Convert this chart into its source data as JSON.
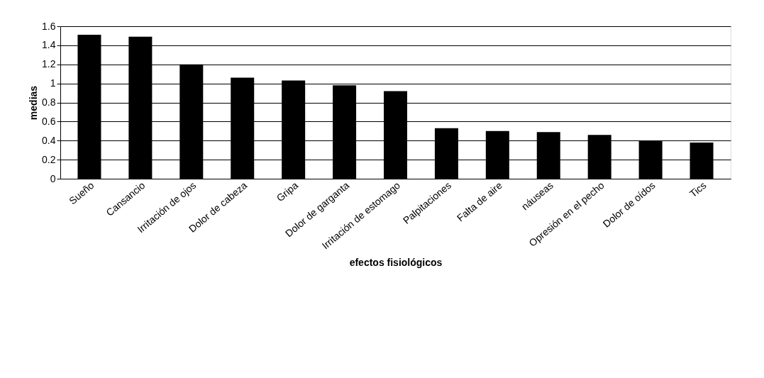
{
  "chart_data": {
    "type": "bar",
    "xlabel": "efectos fisiológicos",
    "ylabel": "medias",
    "categories": [
      "Sueño",
      "Cansancio",
      "Irritación de ojos",
      "Dolor de cabeza",
      "Gripa",
      "Dolor de garganta",
      "Irritación de estomago",
      "Palpitaciones",
      "Falta de aire",
      "náuseas",
      "Opresión en el pecho",
      "Dolor de oídos",
      "Tics"
    ],
    "values": [
      1.51,
      1.49,
      1.2,
      1.06,
      1.03,
      0.98,
      0.92,
      0.53,
      0.5,
      0.49,
      0.46,
      0.4,
      0.38
    ],
    "color": "#000000",
    "ylim": [
      0,
      1.6
    ],
    "yticks": [
      0,
      0.2,
      0.4,
      0.6,
      0.8,
      1,
      1.2,
      1.4,
      1.6
    ],
    "grid": "y"
  }
}
